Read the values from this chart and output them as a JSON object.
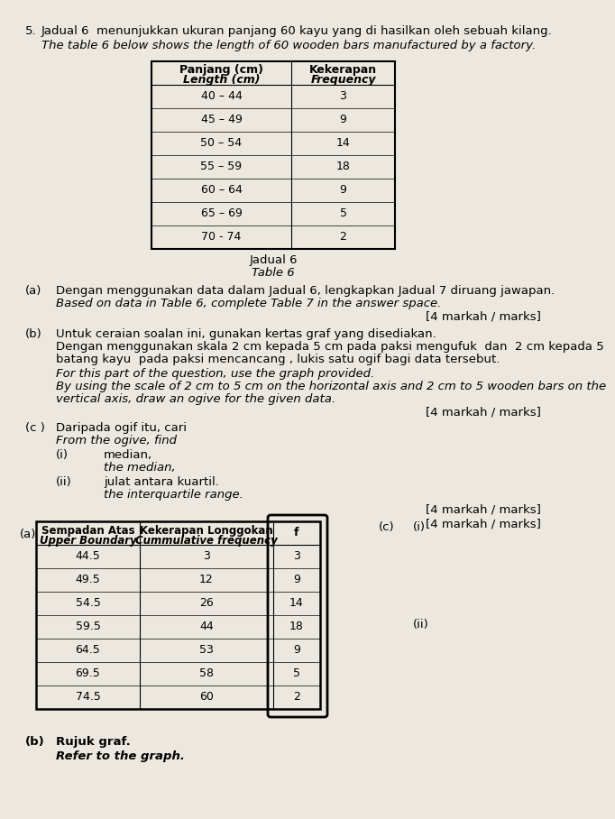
{
  "background_color": "#ede8df",
  "question_number": "5.",
  "malay_title": "Jadual 6  menunjukkan ukuran panjang 60 kayu yang di hasilkan oleh sebuah kilang.",
  "english_title": "The table 6 below shows the length of 60 wooden bars manufactured by a factory.",
  "table6_rows": [
    [
      "40 – 44",
      "3"
    ],
    [
      "45 – 49",
      "9"
    ],
    [
      "50 – 54",
      "14"
    ],
    [
      "55 – 59",
      "18"
    ],
    [
      "60 – 64",
      "9"
    ],
    [
      "65 – 69",
      "5"
    ],
    [
      "70 - 74",
      "2"
    ]
  ],
  "table6_caption_malay": "Jadual 6",
  "table6_caption_english": "Table 6",
  "part_a_malay": "Dengan menggunakan data dalam Jadual 6, lengkapkan Jadual 7 diruang jawapan.",
  "part_a_english": "Based on data in Table 6, complete Table 7 in the answer space.",
  "marks_a": "[4 markah / marks]",
  "part_b_label_malay": "(b)",
  "part_b_malay1": "Untuk ceraian soalan ini, gunakan kertas graf yang disediakan.",
  "part_b_malay2": "Dengan menggunakan skala 2 cm kepada 5 cm pada paksi mengufuk  dan  2 cm kepada 5",
  "part_b_malay3": "batang kayu  pada paksi mencancang , lukis satu ogif bagi data tersebut.",
  "part_b_english1": "For this part of the question, use the graph provided.",
  "part_b_english2": "By using the scale of 2 cm to 5 cm on the horizontal axis and 2 cm to 5 wooden bars on the",
  "part_b_english3": "vertical axis, draw an ogive for the given data.",
  "marks_b": "[4 markah / marks]",
  "part_c_malay": "Daripada ogif itu, cari",
  "part_c_english": "From the ogive, find",
  "part_ci_malay": "median,",
  "part_ci_english": "the median,",
  "part_cii_malay": "julat antara kuartil.",
  "part_cii_english": "the interquartile range.",
  "marks_c": "[4 markah / marks]",
  "answer_table_rows": [
    [
      "44.5",
      "3",
      "3"
    ],
    [
      "49.5",
      "12",
      "9"
    ],
    [
      "54.5",
      "26",
      "14"
    ],
    [
      "59.5",
      "44",
      "18"
    ],
    [
      "64.5",
      "53",
      "9"
    ],
    [
      "69.5",
      "58",
      "5"
    ],
    [
      "74.5",
      "60",
      "2"
    ]
  ],
  "answer_b_malay": "Rujuk graf.",
  "answer_b_english": "Refer to the graph."
}
